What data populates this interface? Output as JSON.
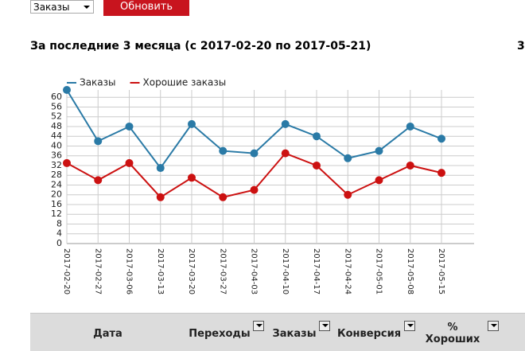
{
  "controls": {
    "select": "Заказы",
    "button": "Обновить"
  },
  "heading": "За последние 3 месяца (с 2017-02-20 по 2017-05-21)",
  "side_text": "3",
  "chart_data": {
    "type": "line",
    "categories": [
      "2017-02-20",
      "2017-02-27",
      "2017-03-06",
      "2017-03-13",
      "2017-03-20",
      "2017-03-27",
      "2017-04-03",
      "2017-04-10",
      "2017-04-17",
      "2017-04-24",
      "2017-05-01",
      "2017-05-08",
      "2017-05-15"
    ],
    "series": [
      {
        "name": "Заказы",
        "color": "#2a7aa6",
        "values": [
          63,
          42,
          48,
          31,
          49,
          38,
          37,
          49,
          44,
          35,
          38,
          48,
          43
        ]
      },
      {
        "name": "Хорошие заказы",
        "color": "#cc1111",
        "values": [
          33,
          26,
          33,
          19,
          27,
          19,
          22,
          37,
          32,
          20,
          26,
          32,
          29
        ]
      }
    ],
    "ylim": [
      0,
      63
    ],
    "yticks": [
      0,
      4,
      8,
      12,
      16,
      20,
      24,
      28,
      32,
      36,
      40,
      44,
      48,
      52,
      56,
      60
    ],
    "grid": true
  },
  "table": {
    "headers": [
      "Дата",
      "Переходы",
      "Заказы",
      "Конверсия",
      "% Хороших"
    ]
  }
}
